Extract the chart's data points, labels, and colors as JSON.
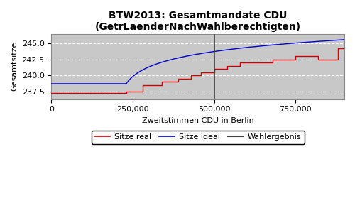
{
  "title": "BTW2013: Gesamtmandate CDU\n(GetrLaenderNachWahlberechtigten)",
  "xlabel": "Zweitstimmen CDU in Berlin",
  "ylabel": "Gesamtsitze",
  "xmin": 0,
  "xmax": 900000,
  "ymin": 236.3,
  "ymax": 246.5,
  "wahlergebnis_x": 500000,
  "bg_color": "#c8c8c8",
  "blue_color": "#0000cc",
  "red_color": "#cc0000",
  "vline_color": "#404040",
  "yticks": [
    237.5,
    240.0,
    242.5,
    245.0
  ],
  "xticks": [
    0,
    250000,
    500000,
    750000
  ],
  "red_step_x": [
    0,
    230000,
    230000,
    280000,
    280000,
    340000,
    340000,
    390000,
    390000,
    430000,
    430000,
    460000,
    460000,
    500000,
    500000,
    540000,
    540000,
    580000,
    580000,
    680000,
    680000,
    750000,
    750000,
    820000,
    820000,
    880000,
    880000,
    900000
  ],
  "red_step_y": [
    237.3,
    237.3,
    237.5,
    237.5,
    238.5,
    238.5,
    239.0,
    239.0,
    239.5,
    239.5,
    240.0,
    240.0,
    240.5,
    240.5,
    241.0,
    241.0,
    241.5,
    241.5,
    242.0,
    242.0,
    242.5,
    242.5,
    243.0,
    243.0,
    242.5,
    242.5,
    244.3,
    244.3
  ],
  "blue_flat_until": 230000,
  "blue_flat_val": 238.7,
  "blue_end_val": 245.6,
  "legend_labels": [
    "Sitze real",
    "Sitze ideal",
    "Wahlergebnis"
  ],
  "legend_colors": [
    "#cc0000",
    "#0000cc",
    "#404040"
  ],
  "title_fontsize": 10,
  "axis_fontsize": 8,
  "tick_fontsize": 8,
  "legend_fontsize": 8
}
